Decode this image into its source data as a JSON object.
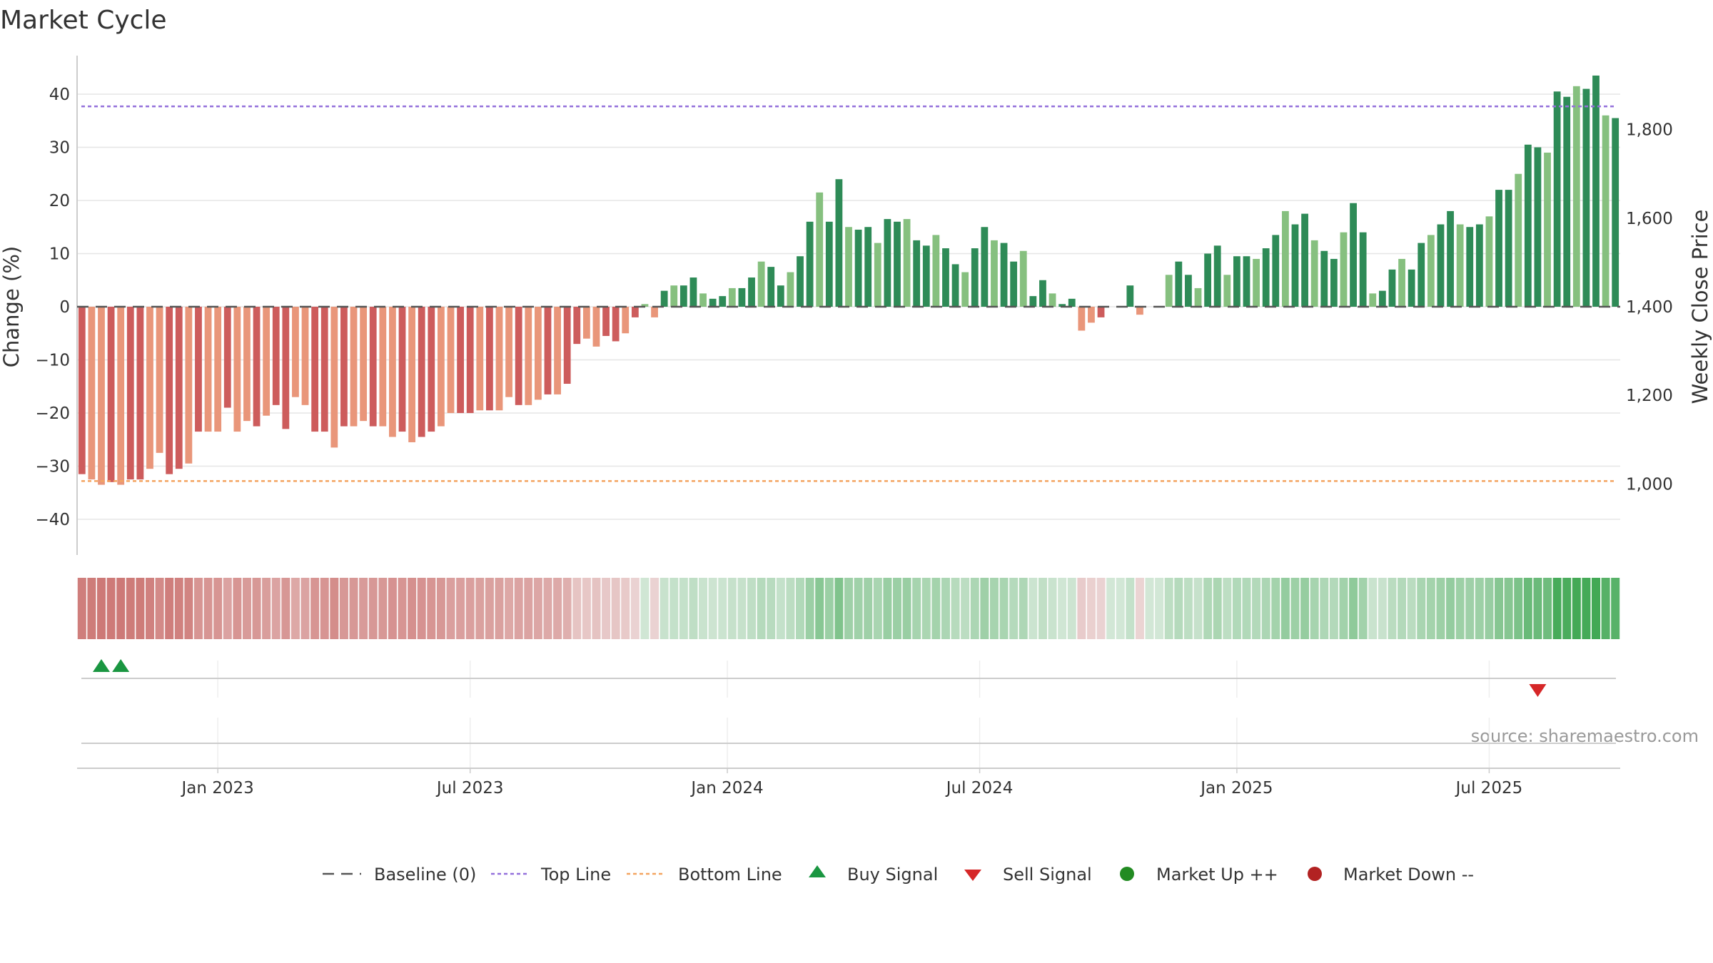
{
  "chart_data": {
    "type": "bar",
    "title": "Market Cycle",
    "ylabel": "Change (%)",
    "y2label": "Weekly Close Price",
    "ylim": [
      -47,
      48
    ],
    "y_ticks": [
      40,
      30,
      20,
      10,
      0,
      -10,
      -20,
      -30,
      -40
    ],
    "y_tick_labels": [
      "40",
      "30",
      "20",
      "10",
      "0",
      "−10",
      "−20",
      "−30",
      "−40"
    ],
    "y2_ticks": [
      1800,
      1600,
      1400,
      1200,
      1000
    ],
    "y2_tick_labels": [
      "1,800",
      "1,600",
      "1,400",
      "1,200",
      "1,000"
    ],
    "top_line": 37.7,
    "bottom_line": -32.8,
    "x_tick_labels": [
      "Jan 2023",
      "Jul 2023",
      "Jan 2024",
      "Jul 2024",
      "Jan 2025",
      "Jul 2025"
    ],
    "x_tick_index": [
      14,
      40,
      66.5,
      92.5,
      119,
      145
    ],
    "values": [
      -31.5,
      -32.5,
      -33.5,
      -33,
      -33.5,
      -32.5,
      -32.5,
      -30.5,
      -27.5,
      -31.5,
      -30.5,
      -29.5,
      -23.5,
      -23.5,
      -23.5,
      -19,
      -23.5,
      -21.5,
      -22.5,
      -20.5,
      -18.5,
      -23,
      -17,
      -18.5,
      -23.5,
      -23.5,
      -26.5,
      -22.5,
      -22.5,
      -21.5,
      -22.5,
      -22.5,
      -24.5,
      -23.5,
      -25.5,
      -24.5,
      -23.5,
      -22.5,
      -20,
      -20,
      -20,
      -19.5,
      -19.5,
      -19.5,
      -17,
      -18.5,
      -18.5,
      -17.5,
      -16.5,
      -16.5,
      -14.5,
      -7,
      -6,
      -7.5,
      -5.5,
      -6.5,
      -5,
      -2,
      0.5,
      -2,
      3,
      4,
      4,
      5.5,
      2.5,
      1.5,
      2,
      3.5,
      3.5,
      5.5,
      8.5,
      7.5,
      4,
      6.5,
      9.5,
      16,
      21.5,
      16,
      24,
      15,
      14.5,
      15,
      12,
      16.5,
      16,
      16.5,
      12.5,
      11.5,
      13.5,
      11,
      8,
      6.5,
      11,
      15,
      12.5,
      12,
      8.5,
      10.5,
      2,
      5,
      2.5,
      0.5,
      1.5,
      -4.5,
      -3,
      -2,
      0,
      0,
      4,
      -1.5,
      0,
      0,
      6,
      8.5,
      6,
      3.5,
      10,
      11.5,
      6,
      9.5,
      9.5,
      9,
      11,
      13.5,
      18,
      15.5,
      17.5,
      12.5,
      10.5,
      9,
      14,
      19.5,
      14,
      2.5,
      3,
      7,
      9,
      7,
      12,
      13.5,
      15.5,
      18,
      15.5,
      15,
      15.5,
      17,
      22,
      22,
      25,
      30.5,
      30,
      29,
      40.5,
      39.5,
      41.5,
      41,
      43.5,
      36,
      35.5
    ],
    "strip_label": "",
    "buy_signals_index": [
      2,
      4
    ],
    "sell_signals_index": [
      150
    ],
    "legend": [
      "Baseline (0)",
      "Top Line",
      "Bottom Line",
      "Buy Signal",
      "Sell Signal",
      "Market Up ++",
      "Market Down --"
    ],
    "legend_placement": "bottom-center",
    "grid": true
  },
  "source": "source: sharemaestro.com",
  "colors": {
    "up_dark": "#2e8b57",
    "up_light": "#86c07f",
    "down_dark": "#cd5c5c",
    "down_light": "#e9967a",
    "top_line": "#9370db",
    "bottom_line": "#f4a460",
    "buy": "#1a9641",
    "sell": "#d62728",
    "market_up": "#228b22",
    "market_down": "#b22222",
    "baseline": "#555555"
  }
}
